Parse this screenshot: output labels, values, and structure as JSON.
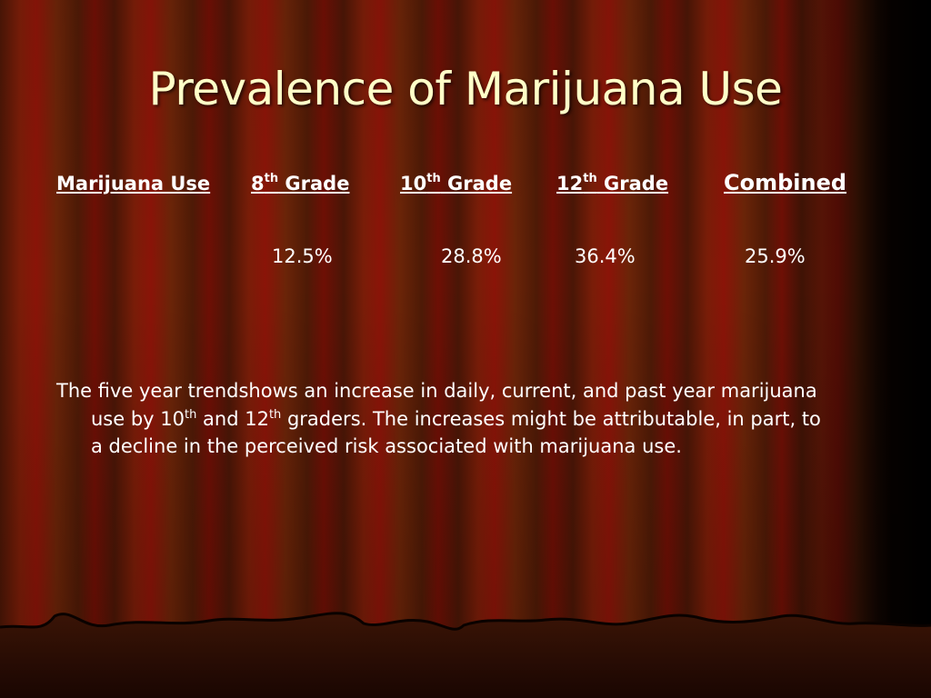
{
  "slide": {
    "title": "Prevalence of Marijuana Use"
  },
  "table": {
    "headers": [
      {
        "label": "Marijuana Use",
        "sup": "",
        "suffix": ""
      },
      {
        "label": "8",
        "sup": "th",
        "suffix": " Grade"
      },
      {
        "label": "10",
        "sup": "th",
        "suffix": " Grade"
      },
      {
        "label": "12",
        "sup": "th",
        "suffix": " Grade"
      },
      {
        "label": "Combined",
        "sup": "",
        "suffix": ""
      }
    ],
    "values": [
      "12.5%",
      "28.8%",
      "36.4%",
      "25.9%"
    ]
  },
  "paragraph": {
    "part1": "The five year trendshows an increase in daily, current, and past year marijuana use by 10",
    "sup1": "th",
    "part2": " and 12",
    "sup2": "th",
    "part3": " graders. The increases might be attributable, in part, to a decline in the perceived risk associated with marijuana use."
  },
  "colors": {
    "title": "#ffffc8",
    "text": "#ffffff",
    "curtain_dark": "#4a1606",
    "curtain_red": "#8a1408"
  }
}
